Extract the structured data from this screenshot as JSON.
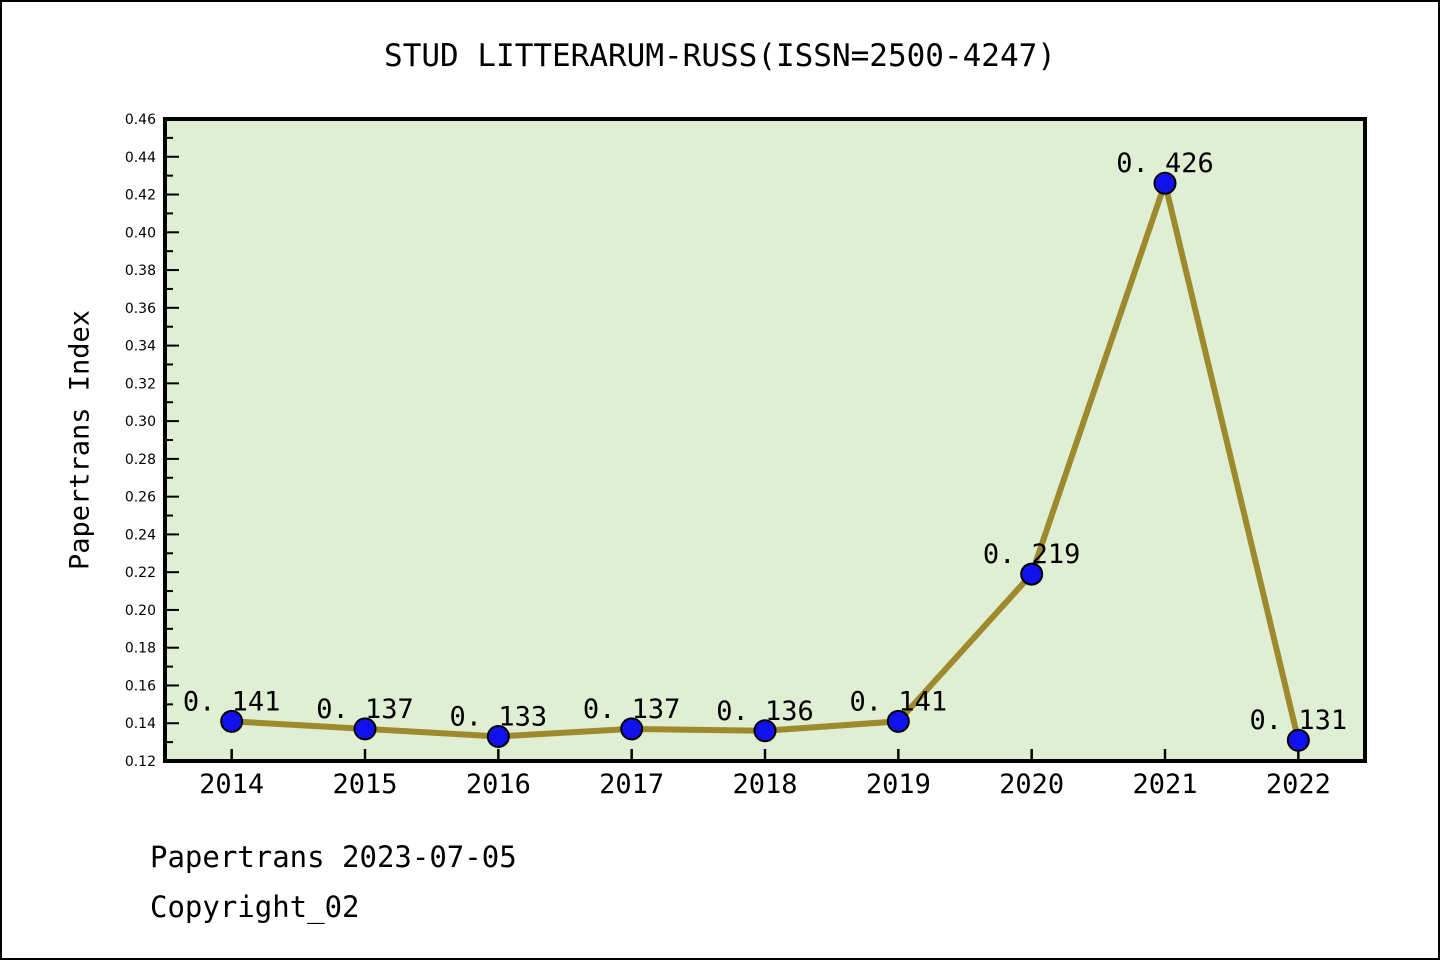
{
  "chart": {
    "title": "STUD LITTERARUM-RUSS(ISSN=2500-4247)",
    "ylabel": "Papertrans Index"
  },
  "footer": {
    "source_line": "Papertrans 2023-07-05",
    "copyright_line": "Copyright_02"
  },
  "chart_data": {
    "type": "line",
    "title": "STUD LITTERARUM-RUSS(ISSN=2500-4247)",
    "xlabel": "",
    "ylabel": "Papertrans Index",
    "categories": [
      "2014",
      "2015",
      "2016",
      "2017",
      "2018",
      "2019",
      "2020",
      "2021",
      "2022"
    ],
    "values": [
      0.141,
      0.137,
      0.133,
      0.137,
      0.136,
      0.141,
      0.219,
      0.426,
      0.131
    ],
    "point_labels": [
      "0. 141",
      "0. 137",
      "0. 133",
      "0. 137",
      "0. 136",
      "0. 141",
      "0. 219",
      "0. 426",
      "0. 131"
    ],
    "ylim": [
      0.12,
      0.46
    ],
    "y_major_step": 0.02,
    "y_minor_step": 0.01,
    "y_tick_decimals": 2,
    "grid": false,
    "legend": "none",
    "colors": {
      "figure_background": "#ffffff",
      "plot_background": "#e0eed3",
      "line": "#9d8a2c",
      "marker_fill": "#1111ee",
      "marker_edge": "#000000",
      "axis": "#000000",
      "text": "#000000"
    }
  }
}
